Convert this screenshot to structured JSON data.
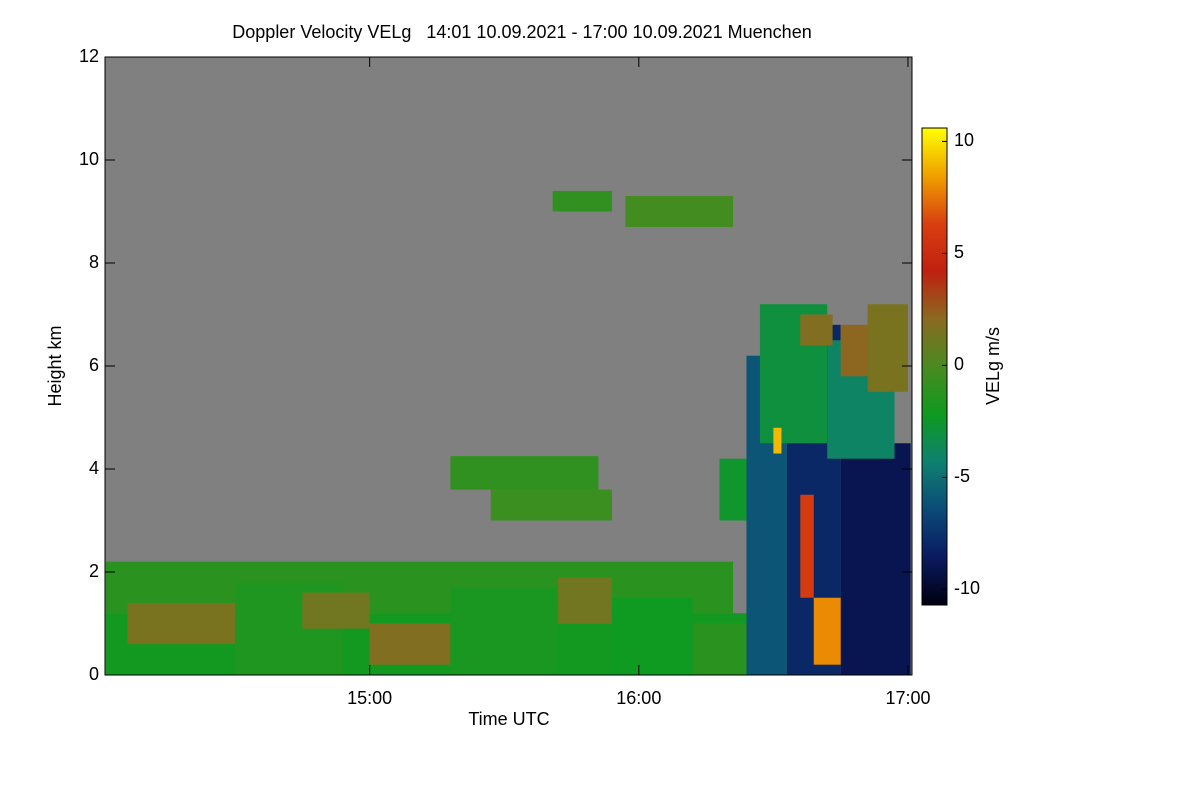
{
  "chart_data": {
    "type": "heatmap",
    "title": "Doppler Velocity VELg   14:01 10.09.2021 - 17:00 10.09.2021 Muenchen",
    "x_label": "Time UTC",
    "y_label": "Height km",
    "colorbar_label": "VELg m/s",
    "xlim": [
      14.0167,
      17.015
    ],
    "ylim": [
      0,
      12
    ],
    "xticks": [
      {
        "value": 15,
        "label": "15:00"
      },
      {
        "value": 16,
        "label": "16:00"
      },
      {
        "value": 17,
        "label": "17:00"
      }
    ],
    "yticks": [
      0,
      2,
      4,
      6,
      8,
      10,
      12
    ],
    "clim": [
      -10.7,
      10.6
    ],
    "cticks": [
      -10,
      -5,
      0,
      5,
      10
    ],
    "colormap": [
      "#000010",
      "#0a1a60",
      "#0b4a78",
      "#0f8070",
      "#0f9a20",
      "#4a8a20",
      "#8a6a20",
      "#c02010",
      "#d84010",
      "#f0a000",
      "#ffff00"
    ],
    "background": "#808080",
    "cells": [
      [
        14.02,
        16.4,
        0,
        1.2,
        -2
      ],
      [
        14.02,
        16.35,
        1.2,
        2.2,
        -1.2
      ],
      [
        14.1,
        14.5,
        0.6,
        1.4,
        1.5
      ],
      [
        14.5,
        14.9,
        0,
        1.8,
        -1.6
      ],
      [
        14.75,
        15.0,
        0.9,
        1.6,
        1.2
      ],
      [
        15.0,
        15.3,
        0.2,
        1.0,
        1.8
      ],
      [
        15.3,
        15.7,
        0,
        1.7,
        -1.8
      ],
      [
        15.7,
        15.9,
        1.0,
        1.9,
        1.3
      ],
      [
        15.9,
        16.2,
        0,
        1.5,
        -2.2
      ],
      [
        16.2,
        16.4,
        0,
        1.0,
        -1.2
      ],
      [
        15.3,
        15.85,
        3.6,
        4.25,
        -1
      ],
      [
        15.45,
        15.9,
        3.0,
        3.6,
        -0.6
      ],
      [
        15.68,
        15.9,
        9.0,
        9.4,
        -1
      ],
      [
        15.95,
        16.35,
        8.7,
        9.3,
        -0.3
      ],
      [
        16.3,
        16.45,
        3.0,
        4.2,
        -2.5
      ],
      [
        16.4,
        16.55,
        0,
        6.2,
        -6
      ],
      [
        16.55,
        16.75,
        0,
        6.8,
        -8
      ],
      [
        16.75,
        17.01,
        0,
        4.5,
        -9
      ],
      [
        16.45,
        16.7,
        4.5,
        7.2,
        -3
      ],
      [
        16.7,
        16.95,
        4.2,
        6.5,
        -4
      ],
      [
        16.6,
        16.72,
        6.4,
        7.0,
        1.8
      ],
      [
        16.85,
        17.0,
        5.5,
        7.2,
        1.5
      ],
      [
        16.75,
        16.85,
        5.8,
        6.8,
        2.2
      ],
      [
        16.65,
        16.75,
        0.2,
        1.5,
        8
      ],
      [
        16.6,
        16.65,
        1.5,
        3.5,
        6
      ],
      [
        16.5,
        16.53,
        4.3,
        4.8,
        9
      ]
    ]
  }
}
